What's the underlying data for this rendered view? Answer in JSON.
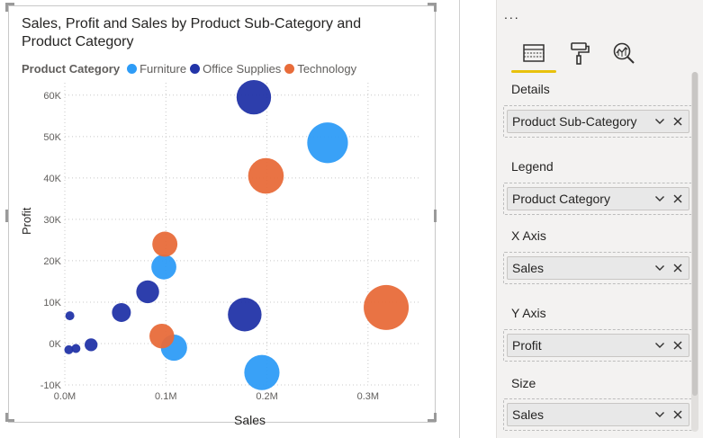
{
  "chart_data": {
    "type": "scatter",
    "title": "Sales, Profit and Sales by Product Sub-Category and Product Category",
    "xlabel": "Sales",
    "ylabel": "Profit",
    "xlim": [
      0,
      0.35
    ],
    "ylim": [
      -10000,
      63000
    ],
    "xticks": [
      0,
      0.1,
      0.2,
      0.3
    ],
    "xtick_labels": [
      "0.0M",
      "0.1M",
      "0.2M",
      "0.3M"
    ],
    "yticks": [
      -10000,
      0,
      10000,
      20000,
      30000,
      40000,
      50000,
      60000
    ],
    "ytick_labels": [
      "-10K",
      "0K",
      "10K",
      "20K",
      "30K",
      "40K",
      "50K",
      "60K"
    ],
    "grid": true,
    "legend_title": "Product Category",
    "legend_position": "top-left",
    "series": [
      {
        "name": "Furniture",
        "color": "#2e9cf7",
        "points": [
          {
            "x": 0.26,
            "y": 48500,
            "size": 0.26
          },
          {
            "x": 0.098,
            "y": 18500,
            "size": 0.098
          },
          {
            "x": 0.108,
            "y": -1000,
            "size": 0.108
          },
          {
            "x": 0.195,
            "y": -7000,
            "size": 0.195
          }
        ]
      },
      {
        "name": "Office Supplies",
        "color": "#2234a8",
        "points": [
          {
            "x": 0.187,
            "y": 59500,
            "size": 0.187
          },
          {
            "x": 0.082,
            "y": 12500,
            "size": 0.082
          },
          {
            "x": 0.056,
            "y": 7500,
            "size": 0.056
          },
          {
            "x": 0.005,
            "y": 6700,
            "size": 0.005
          },
          {
            "x": 0.178,
            "y": 7000,
            "size": 0.178
          },
          {
            "x": 0.026,
            "y": -300,
            "size": 0.026
          },
          {
            "x": 0.011,
            "y": -1200,
            "size": 0.011
          },
          {
            "x": 0.004,
            "y": -1500,
            "size": 0.004
          }
        ]
      },
      {
        "name": "Technology",
        "color": "#e86c3a",
        "points": [
          {
            "x": 0.199,
            "y": 40500,
            "size": 0.199
          },
          {
            "x": 0.099,
            "y": 24000,
            "size": 0.099
          },
          {
            "x": 0.096,
            "y": 1800,
            "size": 0.096
          },
          {
            "x": 0.318,
            "y": 8700,
            "size": 0.318
          }
        ]
      }
    ]
  },
  "pane": {
    "more_label": "...",
    "tabs": [
      {
        "name": "fields-tab",
        "icon": "fields-icon"
      },
      {
        "name": "format-tab",
        "icon": "paint-roller-icon"
      },
      {
        "name": "analytics-tab",
        "icon": "analytics-icon"
      }
    ],
    "wells": [
      {
        "label": "Details",
        "field": "Product Sub-Category"
      },
      {
        "label": "Legend",
        "field": "Product Category"
      },
      {
        "label": "X Axis",
        "field": "Sales"
      },
      {
        "label": "Y Axis",
        "field": "Profit"
      },
      {
        "label": "Size",
        "field": "Sales"
      }
    ]
  }
}
